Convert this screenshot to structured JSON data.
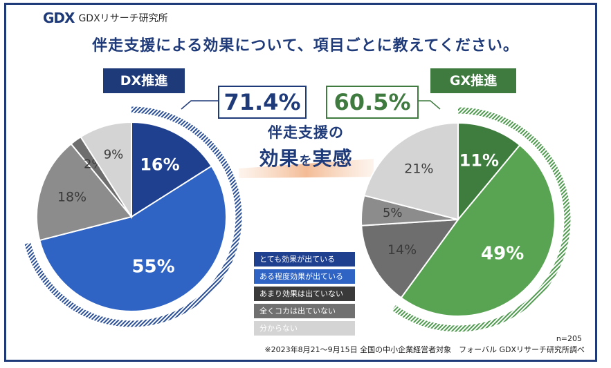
{
  "logo": {
    "mark": "GDX",
    "text": "GDXリサーチ研究所"
  },
  "title": "伴走支援による効果について、項目ごとに教えてください。",
  "center_text": {
    "line1": "伴走支援の",
    "line2a": "効果",
    "line2b": "を",
    "line2c": "実感"
  },
  "colors": {
    "dx_very": "#1f3f8f",
    "dx_some": "#2f64c4",
    "gx_very": "#3f7d3f",
    "gx_some": "#58a452",
    "not_much": "#8c8c8c",
    "not_at_all": "#6e6e6e",
    "unknown": "#d4d4d4",
    "navy": "#1f3a78",
    "green": "#3f7a3f"
  },
  "chart_data": [
    {
      "type": "pie",
      "title": "DX推進",
      "highlight_total": "71.4%",
      "slices": [
        {
          "label": "とても効果が出ている",
          "value": 16,
          "display": "16%"
        },
        {
          "label": "ある程度効果が出ている",
          "value": 55,
          "display": "55%"
        },
        {
          "label": "あまり効果は出ていない",
          "value": 18,
          "display": "18%"
        },
        {
          "label": "全くコカは出ていない",
          "value": 2,
          "display": "2%"
        },
        {
          "label": "分からない",
          "value": 9,
          "display": "9%"
        }
      ]
    },
    {
      "type": "pie",
      "title": "GX推進",
      "highlight_total": "60.5%",
      "slices": [
        {
          "label": "とても効果が出ている",
          "value": 11,
          "display": "11%"
        },
        {
          "label": "ある程度効果が出ている",
          "value": 49,
          "display": "49%"
        },
        {
          "label": "あまり効果は出ていない",
          "value": 14,
          "display": "14%"
        },
        {
          "label": "全くコカは出ていない",
          "value": 5,
          "display": "5%"
        },
        {
          "label": "分からない",
          "value": 21,
          "display": "21%"
        }
      ]
    }
  ],
  "legend": [
    {
      "label": "とても効果が出ている",
      "color": "#1f3f8f"
    },
    {
      "label": "ある程度効果が出ている",
      "color": "#2f64c4"
    },
    {
      "label": "あまり効果は出ていない",
      "color": "#3a3a3a"
    },
    {
      "label": "全くコカは出ていない",
      "color": "#707070"
    },
    {
      "label": "分からない",
      "color": "#d4d4d4"
    }
  ],
  "notes": {
    "n": "n=205",
    "source": "※2023年8月21～9月15日 全国の中小企業経営者対象　フォーバル GDXリサーチ研究所調べ"
  }
}
